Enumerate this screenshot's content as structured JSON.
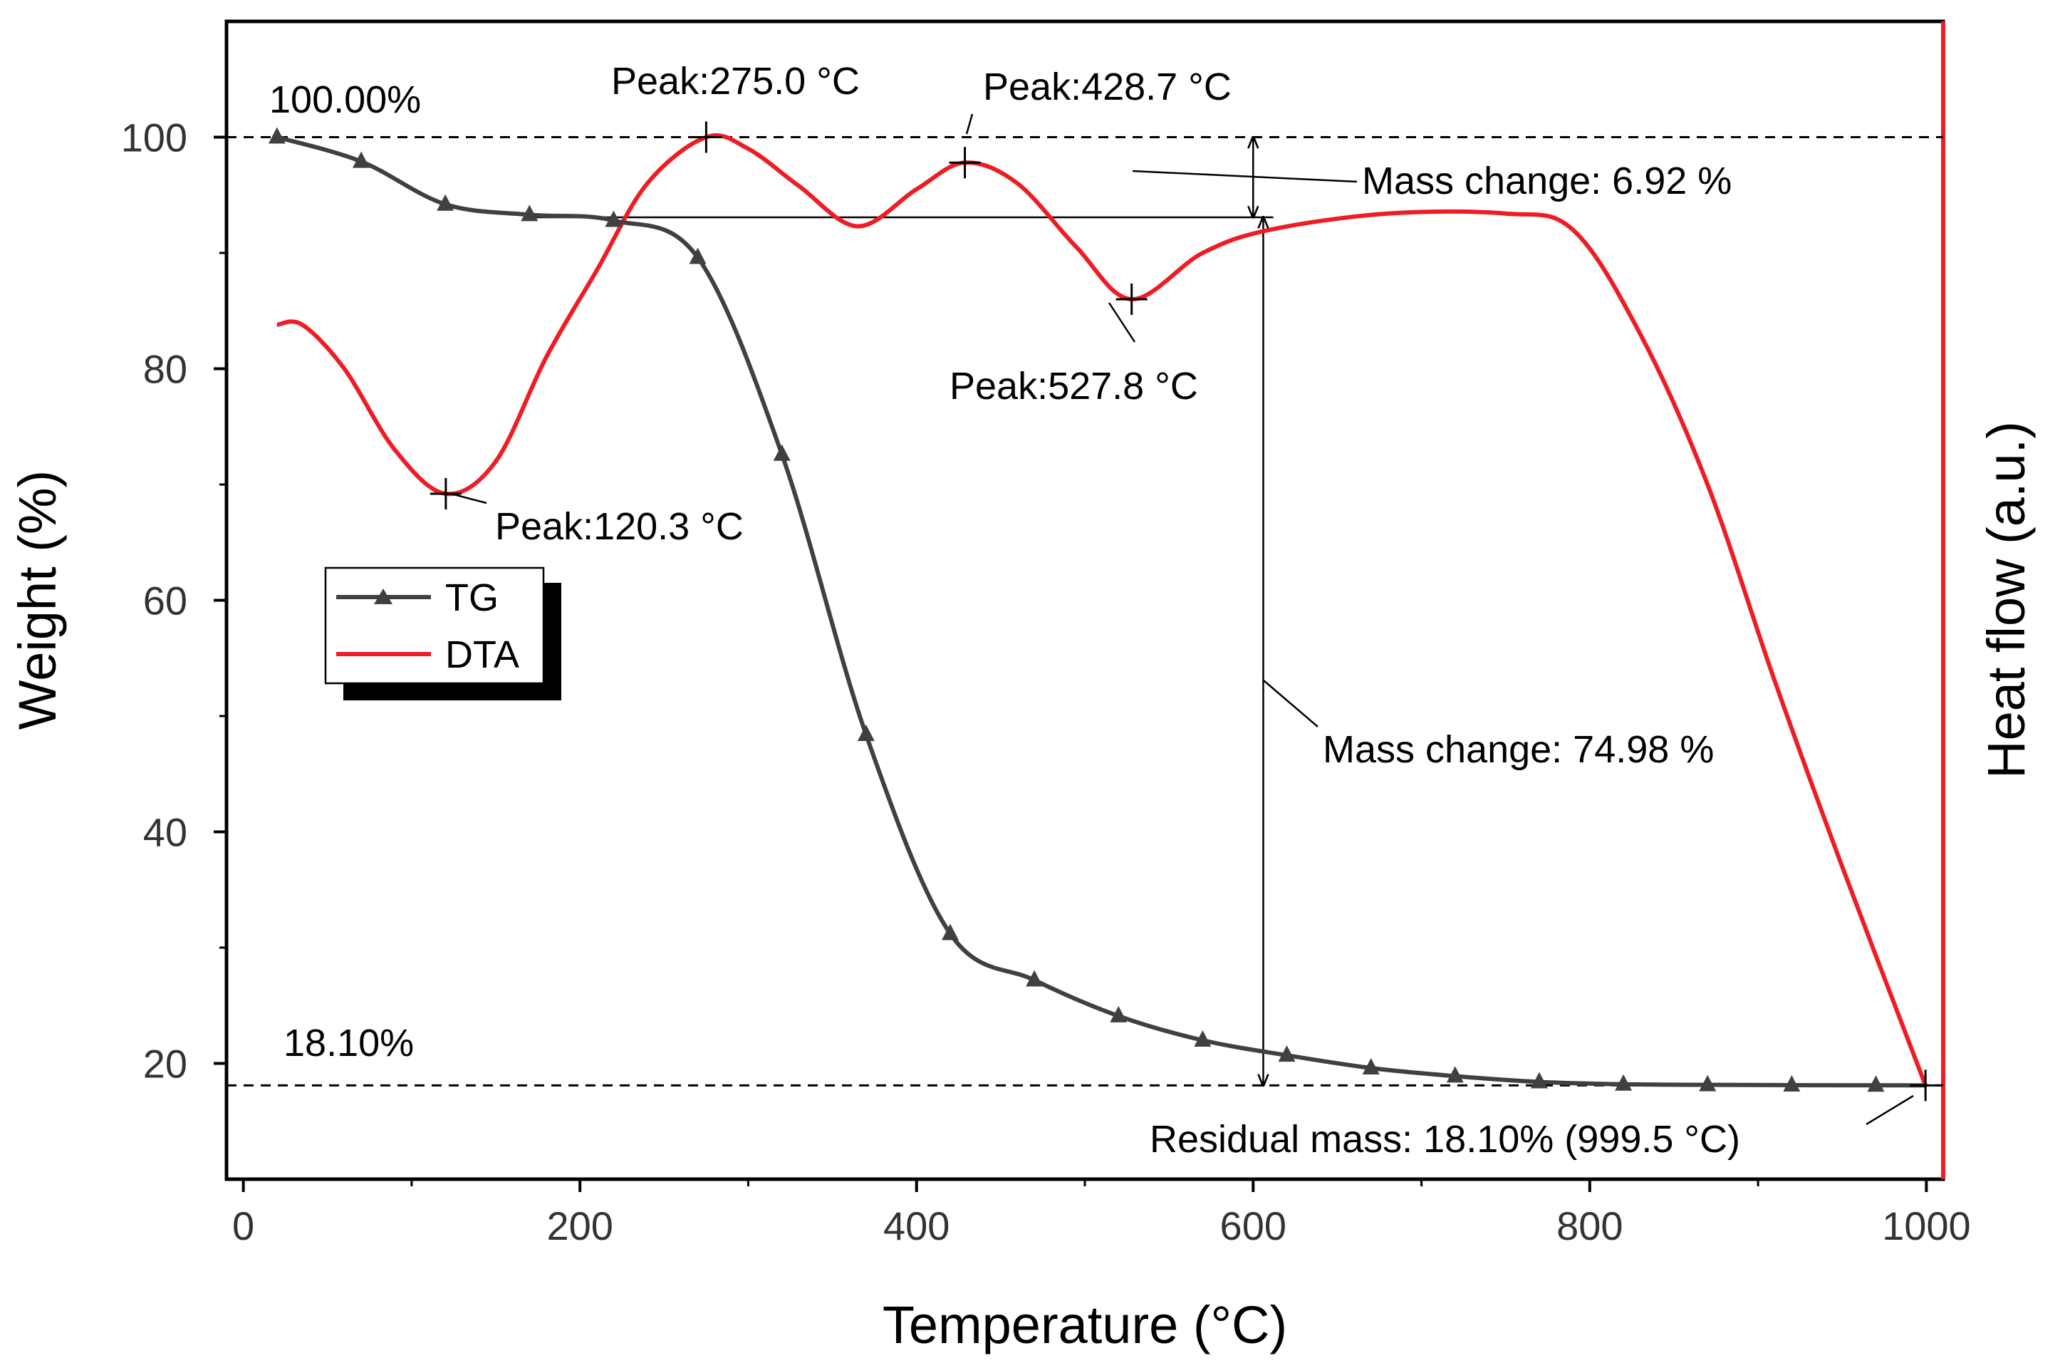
{
  "chart_data": {
    "type": "line",
    "title": "",
    "xlabel": "Temperature (°C)",
    "ylabel": "Weight (%)",
    "y2label": "Heat flow (a.u.)",
    "xlim": [
      -10,
      1010
    ],
    "ylim": [
      10,
      110
    ],
    "x_ticks": [
      0,
      200,
      400,
      600,
      800,
      1000
    ],
    "y_ticks": [
      20,
      40,
      60,
      80,
      100
    ],
    "legend_position": "center-left",
    "legend": [
      {
        "name": "TG",
        "color": "#404040",
        "marker": "triangle"
      },
      {
        "name": "DTA",
        "color": "#ee1c24",
        "marker": "none"
      }
    ],
    "series": [
      {
        "name": "TG",
        "color": "#404040",
        "x": [
          20,
          70,
          120,
          170,
          220,
          270,
          320,
          370,
          420,
          470,
          520,
          570,
          620,
          670,
          720,
          770,
          820,
          870,
          920,
          970,
          999.5
        ],
        "y": [
          100.0,
          97.9,
          94.2,
          93.3,
          92.8,
          89.6,
          72.6,
          48.4,
          31.2,
          27.2,
          24.1,
          22.0,
          20.7,
          19.6,
          18.9,
          18.4,
          18.2,
          18.15,
          18.12,
          18.11,
          18.1
        ],
        "marker_x": [
          20,
          70,
          120,
          170,
          220,
          270,
          320,
          370,
          420,
          470,
          520,
          570,
          620,
          670,
          720,
          770,
          820,
          870,
          920,
          970
        ]
      },
      {
        "name": "DTA",
        "color": "#ee1c24",
        "note": "heat flow, plotted in weight-axis units for display",
        "x": [
          20,
          35,
          60,
          90,
          120.3,
          150,
          180,
          210,
          240,
          275,
          300,
          330,
          365,
          400,
          428.7,
          460,
          495,
          527.8,
          570,
          610,
          680,
          750,
          790,
          830,
          870,
          910,
          950,
          999.5
        ],
        "y": [
          83.8,
          83.8,
          80.0,
          73.0,
          69.2,
          72.0,
          81.0,
          88.5,
          96.0,
          100.0,
          99.0,
          95.8,
          92.3,
          95.5,
          97.8,
          96.0,
          90.5,
          86.0,
          90.0,
          92.0,
          93.4,
          93.4,
          92.0,
          83.0,
          70.0,
          53.0,
          37.0,
          18.1
        ]
      }
    ],
    "reference_lines": [
      {
        "y": 100.0,
        "style": "dashed"
      },
      {
        "y": 18.1,
        "style": "dashed"
      }
    ],
    "peaks": [
      {
        "label": "Peak:120.3 °C",
        "x": 120.3,
        "y": 69.2
      },
      {
        "label": "Peak:275.0 °C",
        "x": 275.0,
        "y": 100.0
      },
      {
        "label": "Peak:428.7 °C",
        "x": 428.7,
        "y": 97.8
      },
      {
        "label": "Peak:527.8 °C",
        "x": 527.8,
        "y": 86.0
      }
    ],
    "annotations": {
      "start_mass": "100.00%",
      "end_mass": "18.10%",
      "mass_change_1": "Mass change: 6.92 %",
      "mass_change_2": "Mass change: 74.98 %",
      "residual": "Residual mass: 18.10% (999.5 °C)"
    },
    "mass_change_brackets": [
      {
        "x": 600,
        "y_top": 100.0,
        "y_bottom": 93.08
      },
      {
        "x": 606,
        "y_top": 93.08,
        "y_bottom": 18.1
      }
    ],
    "residual_point": {
      "x": 999.5,
      "y": 18.1
    }
  }
}
